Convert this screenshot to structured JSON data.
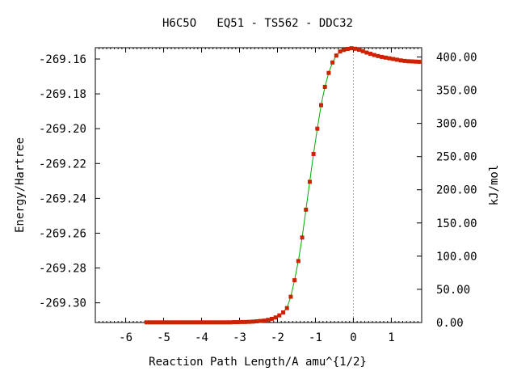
{
  "chart_data": {
    "type": "line",
    "title": "H6C5O   EQ51 - TS562 - DDC32",
    "xlabel": "Reaction Path Length/A amu^{1/2}",
    "ylabel": "Energy/Hartree",
    "y2label": "kJ/mol",
    "xlim": [
      -6.8,
      1.8
    ],
    "ylim": [
      -269.3113,
      -269.1535
    ],
    "y2lim": [
      0,
      414
    ],
    "xticks": [
      -6,
      -5,
      -4,
      -3,
      -2,
      -1,
      0,
      1
    ],
    "xtick_labels": [
      "-6",
      "-5",
      "-4",
      "-3",
      "-2",
      "-1",
      "0",
      "1"
    ],
    "yticks": [
      -269.16,
      -269.18,
      -269.2,
      -269.22,
      -269.24,
      -269.26,
      -269.28,
      -269.3
    ],
    "ytick_labels": [
      "-269.16",
      "-269.18",
      "-269.20",
      "-269.22",
      "-269.24",
      "-269.26",
      "-269.28",
      "-269.30"
    ],
    "y2ticks": [
      400,
      350,
      300,
      250,
      200,
      150,
      100,
      50,
      0
    ],
    "y2tick_labels": [
      "400.00",
      "350.00",
      "300.00",
      "250.00",
      "200.00",
      "150.00",
      "100.00",
      "50.00",
      "0.00"
    ],
    "ts_marker_x": 0,
    "line_color": "#00aa00",
    "marker_color": "#cc2200",
    "ts_line_color": "#aaaaaa",
    "series": [
      {
        "x": [
          -5.45,
          -5.35,
          -5.25,
          -5.15,
          -5.05,
          -4.95,
          -4.85,
          -4.75,
          -4.65,
          -4.55,
          -4.45,
          -4.35,
          -4.25,
          -4.15,
          -4.05,
          -3.95,
          -3.85,
          -3.75,
          -3.65,
          -3.55,
          -3.45,
          -3.35,
          -3.25,
          -3.15,
          -3.05,
          -2.95,
          -2.85,
          -2.75,
          -2.65,
          -2.55,
          -2.45,
          -2.35,
          -2.25,
          -2.15,
          -2.05,
          -1.95,
          -1.85,
          -1.75,
          -1.65,
          -1.55,
          -1.45,
          -1.35,
          -1.25,
          -1.15,
          -1.05,
          -0.95,
          -0.85,
          -0.75,
          -0.65,
          -0.55,
          -0.45,
          -0.35,
          -0.25,
          -0.15,
          -0.05,
          0.05,
          0.15,
          0.25,
          0.35,
          0.45,
          0.55,
          0.65,
          0.75,
          0.85,
          0.95,
          1.05,
          1.15,
          1.25,
          1.35,
          1.45,
          1.55,
          1.65,
          1.75
        ],
        "y": [
          -269.3112,
          -269.3112,
          -269.3112,
          -269.3112,
          -269.3112,
          -269.3112,
          -269.3112,
          -269.3112,
          -269.3112,
          -269.3112,
          -269.3112,
          -269.3112,
          -269.3112,
          -269.3112,
          -269.3112,
          -269.3112,
          -269.3112,
          -269.3112,
          -269.3112,
          -269.3112,
          -269.3112,
          -269.3112,
          -269.3112,
          -269.3111,
          -269.3111,
          -269.311,
          -269.311,
          -269.3109,
          -269.3108,
          -269.3106,
          -269.3104,
          -269.3102,
          -269.3098,
          -269.3092,
          -269.3084,
          -269.3072,
          -269.3055,
          -269.303,
          -269.2965,
          -269.287,
          -269.276,
          -269.2625,
          -269.2465,
          -269.2305,
          -269.2145,
          -269.2,
          -269.1865,
          -269.176,
          -269.168,
          -269.162,
          -269.158,
          -269.1557,
          -269.1548,
          -269.1542,
          -269.1538,
          -269.1541,
          -269.1547,
          -269.1555,
          -269.1563,
          -269.157,
          -269.1577,
          -269.1583,
          -269.1588,
          -269.1592,
          -269.1596,
          -269.16,
          -269.1604,
          -269.1608,
          -269.1611,
          -269.1613,
          -269.1614,
          -269.1615,
          -269.1616
        ]
      }
    ]
  }
}
